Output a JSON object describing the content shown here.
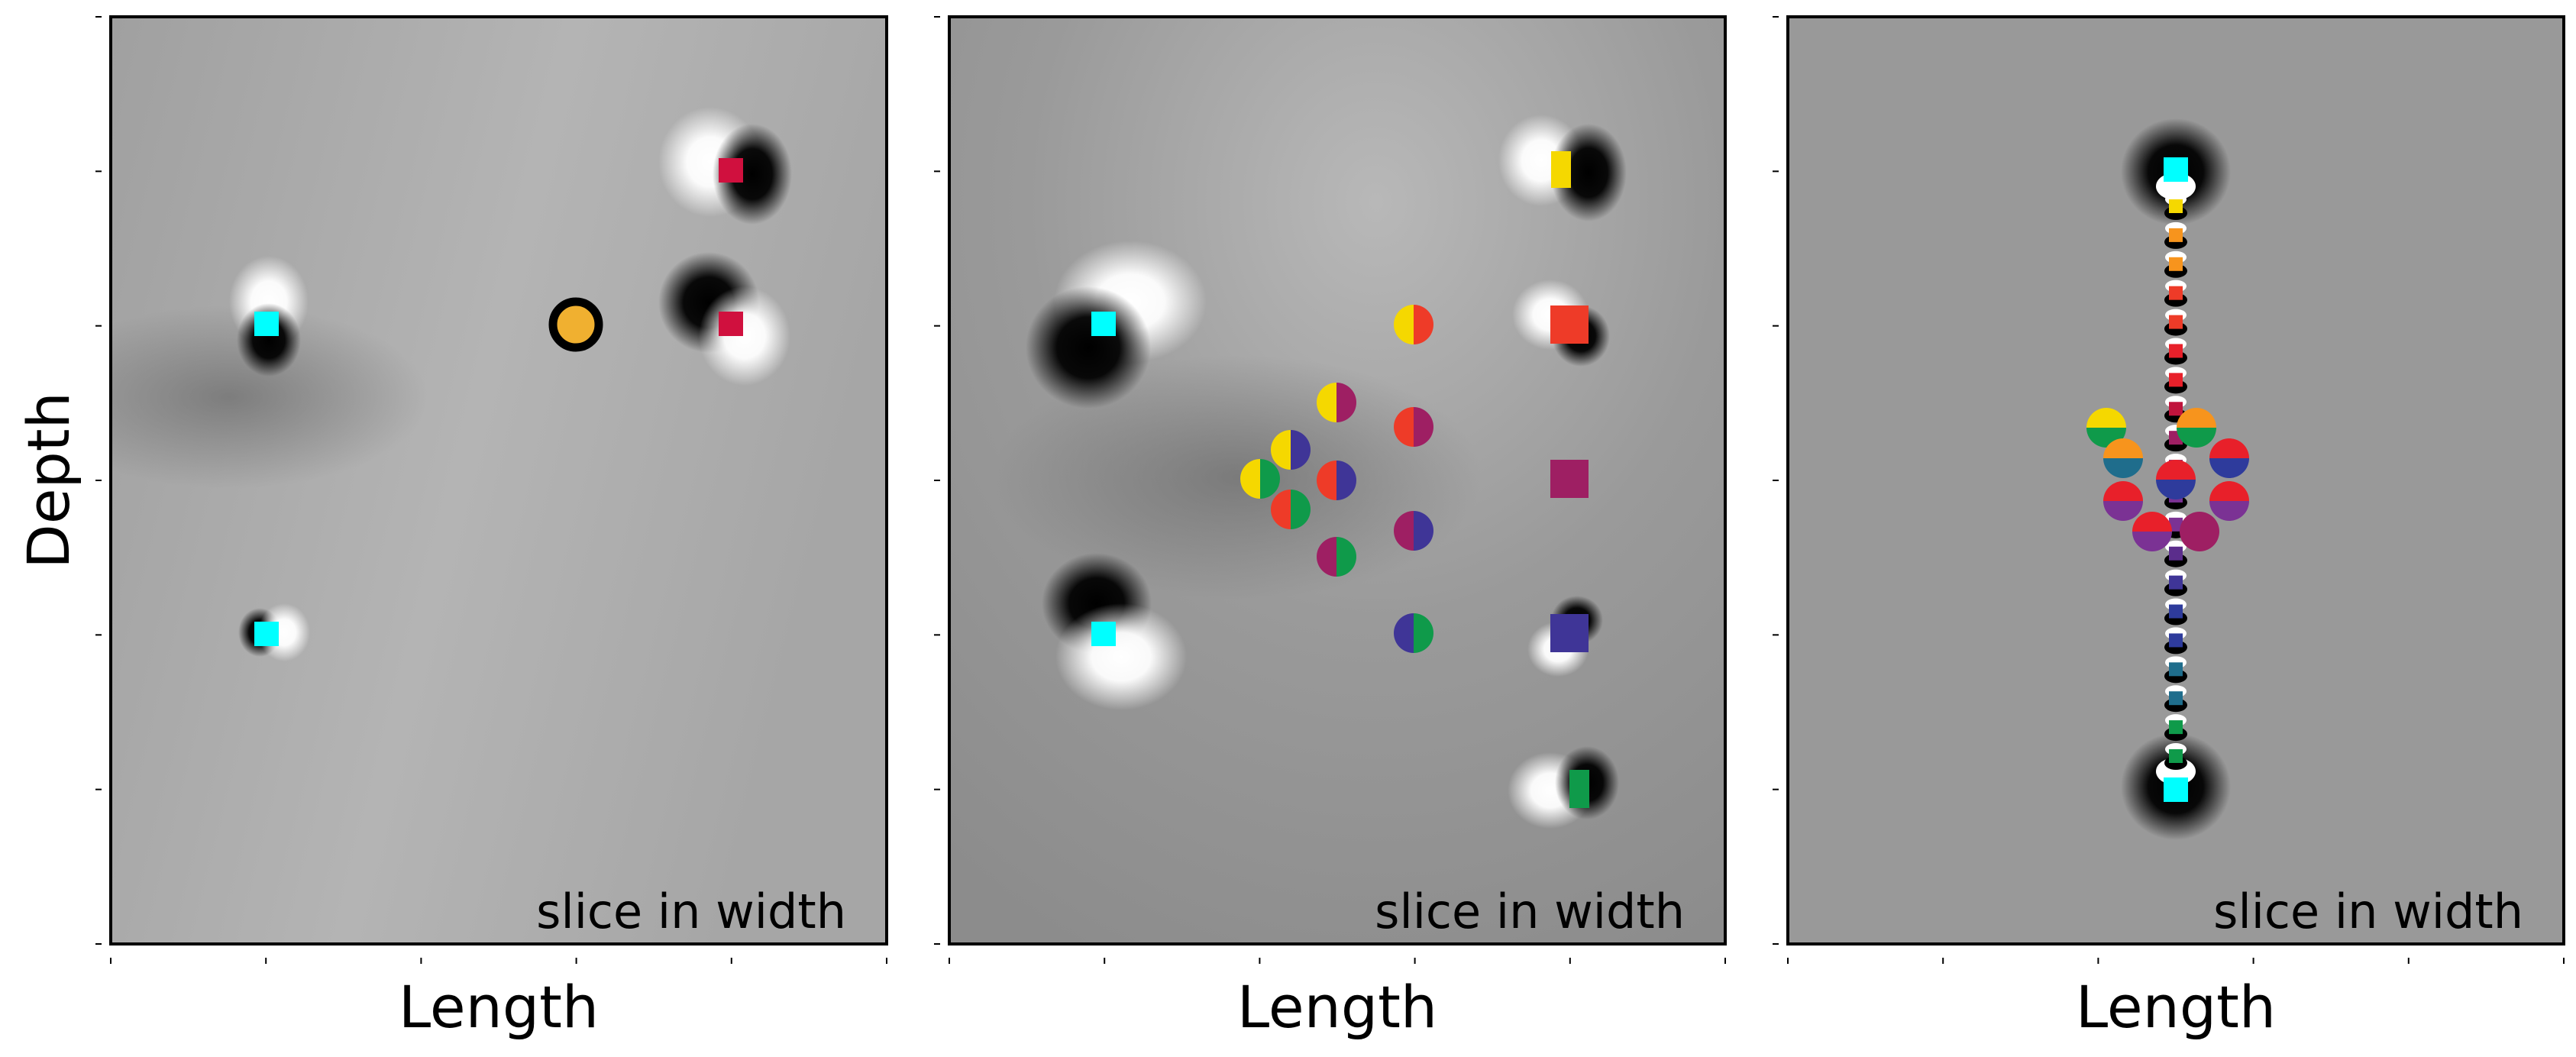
{
  "figure": {
    "ylabel": "Depth",
    "colors": {
      "cyan": "#00ffff",
      "crimson": "#d0103e",
      "gold": "#f0b030",
      "yellow": "#f5d800",
      "red_orange": "#ee3b28",
      "magenta": "#9e1f63",
      "indigo": "#3f3597",
      "green": "#0f9a4a",
      "orange": "#f7941d",
      "teal": "#1f6d8c",
      "purple": "#7b3294",
      "red": "#e8202a",
      "blue": "#2e3b9c"
    }
  },
  "panels": [
    {
      "xlabel": "Length",
      "annotation": "slice in width"
    },
    {
      "xlabel": "Length",
      "annotation": "slice in width"
    },
    {
      "xlabel": "Length",
      "annotation": "slice in width"
    }
  ]
}
